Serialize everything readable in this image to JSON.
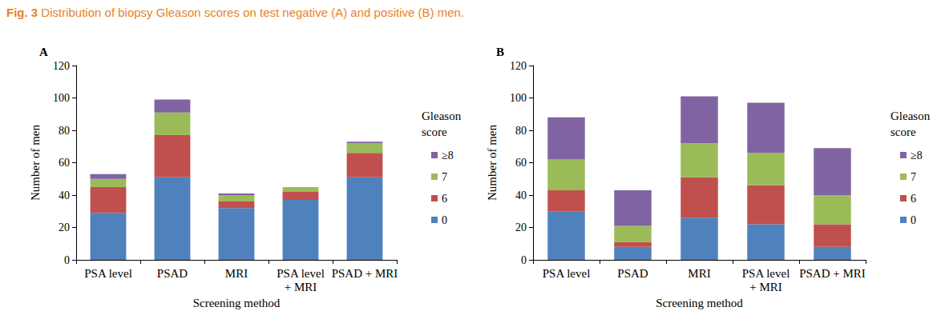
{
  "caption": {
    "label": "Fig. 3",
    "text": "Distribution of biopsy Gleason scores on test negative (A) and positive (B) men."
  },
  "chart_data": [
    {
      "type": "bar",
      "title": "A",
      "x_label": "Screening method",
      "y_label": "Number of men",
      "legend_title": "Gleason score",
      "legend": "right",
      "stacked": true,
      "grid": false,
      "data_labels": false,
      "categories": [
        "PSA level",
        "PSAD",
        "MRI",
        "PSA level\n+ MRI",
        "PSAD + MRI"
      ],
      "ylim": [
        0,
        120
      ],
      "yticks": [
        0,
        20,
        40,
        60,
        80,
        100,
        120
      ],
      "series": [
        {
          "name": "0",
          "color": "#4f81bd",
          "values": [
            29,
            51,
            32,
            37,
            51
          ]
        },
        {
          "name": "6",
          "color": "#c0504d",
          "values": [
            16,
            26,
            4,
            5,
            15
          ]
        },
        {
          "name": "7",
          "color": "#9bbb59",
          "values": [
            5,
            14,
            4,
            3,
            6
          ]
        },
        {
          "name": "≥8",
          "color": "#8064a2",
          "values": [
            3,
            8,
            1,
            0,
            1
          ]
        }
      ]
    },
    {
      "type": "bar",
      "title": "B",
      "x_label": "Screening method",
      "y_label": "Number of men",
      "legend_title": "Gleason score",
      "legend": "right",
      "stacked": true,
      "grid": false,
      "data_labels": false,
      "categories": [
        "PSA level",
        "PSAD",
        "MRI",
        "PSA level\n+ MRI",
        "PSAD + MRI"
      ],
      "ylim": [
        0,
        120
      ],
      "yticks": [
        0,
        20,
        40,
        60,
        80,
        100,
        120
      ],
      "series": [
        {
          "name": "0",
          "color": "#4f81bd",
          "values": [
            30,
            8,
            26,
            22,
            8
          ]
        },
        {
          "name": "6",
          "color": "#c0504d",
          "values": [
            13,
            3,
            25,
            24,
            14
          ]
        },
        {
          "name": "7",
          "color": "#9bbb59",
          "values": [
            19,
            10,
            21,
            20,
            18
          ]
        },
        {
          "name": "≥8",
          "color": "#8064a2",
          "values": [
            26,
            22,
            29,
            31,
            29
          ]
        }
      ]
    }
  ]
}
